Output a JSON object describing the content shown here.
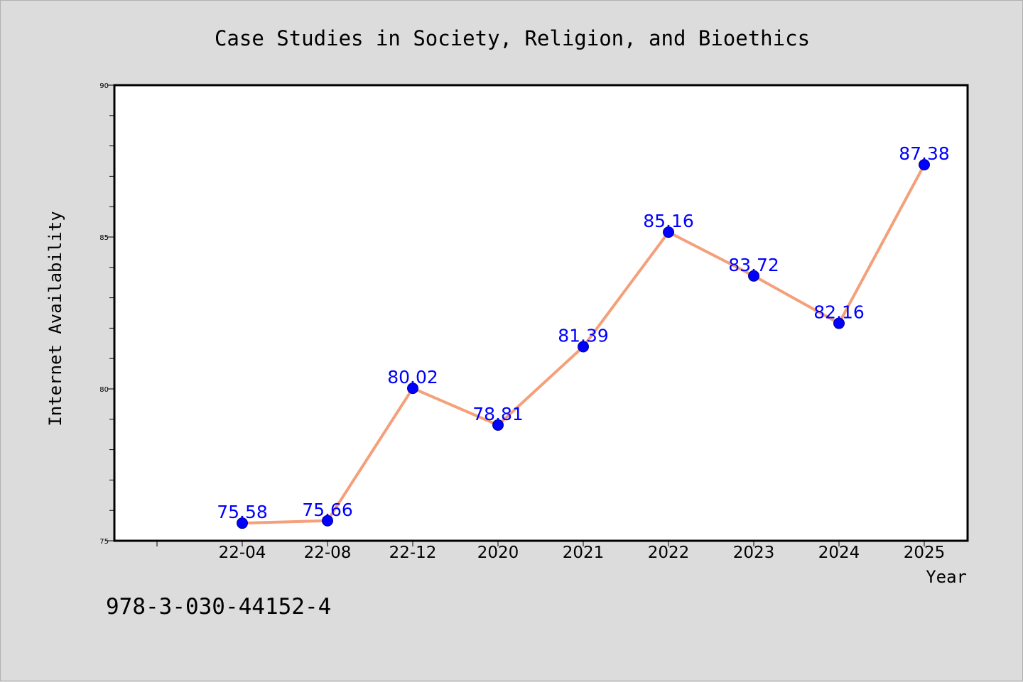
{
  "chart_data": {
    "type": "line",
    "title": "Case Studies in Society, Religion, and Bioethics",
    "xlabel": "Year",
    "ylabel": "Internet Availability",
    "categories": [
      "22-04",
      "22-08",
      "22-12",
      "2020",
      "2021",
      "2022",
      "2023",
      "2024",
      "2025"
    ],
    "values": [
      75.58,
      75.66,
      80.02,
      78.81,
      81.39,
      85.16,
      83.72,
      82.16,
      87.38
    ],
    "data_labels": [
      "75.58",
      "75.66",
      "80.02",
      "78.81",
      "81.39",
      "85.16",
      "83.72",
      "82.16",
      "87.38"
    ],
    "ylim": [
      75,
      90
    ],
    "yticks": [
      75,
      80,
      85,
      90
    ],
    "grid": false,
    "line_color": "#f4a07a",
    "marker_color": "#0000ff",
    "label_color": "#0000ff"
  },
  "footer_text": "978-3-030-44152-4"
}
